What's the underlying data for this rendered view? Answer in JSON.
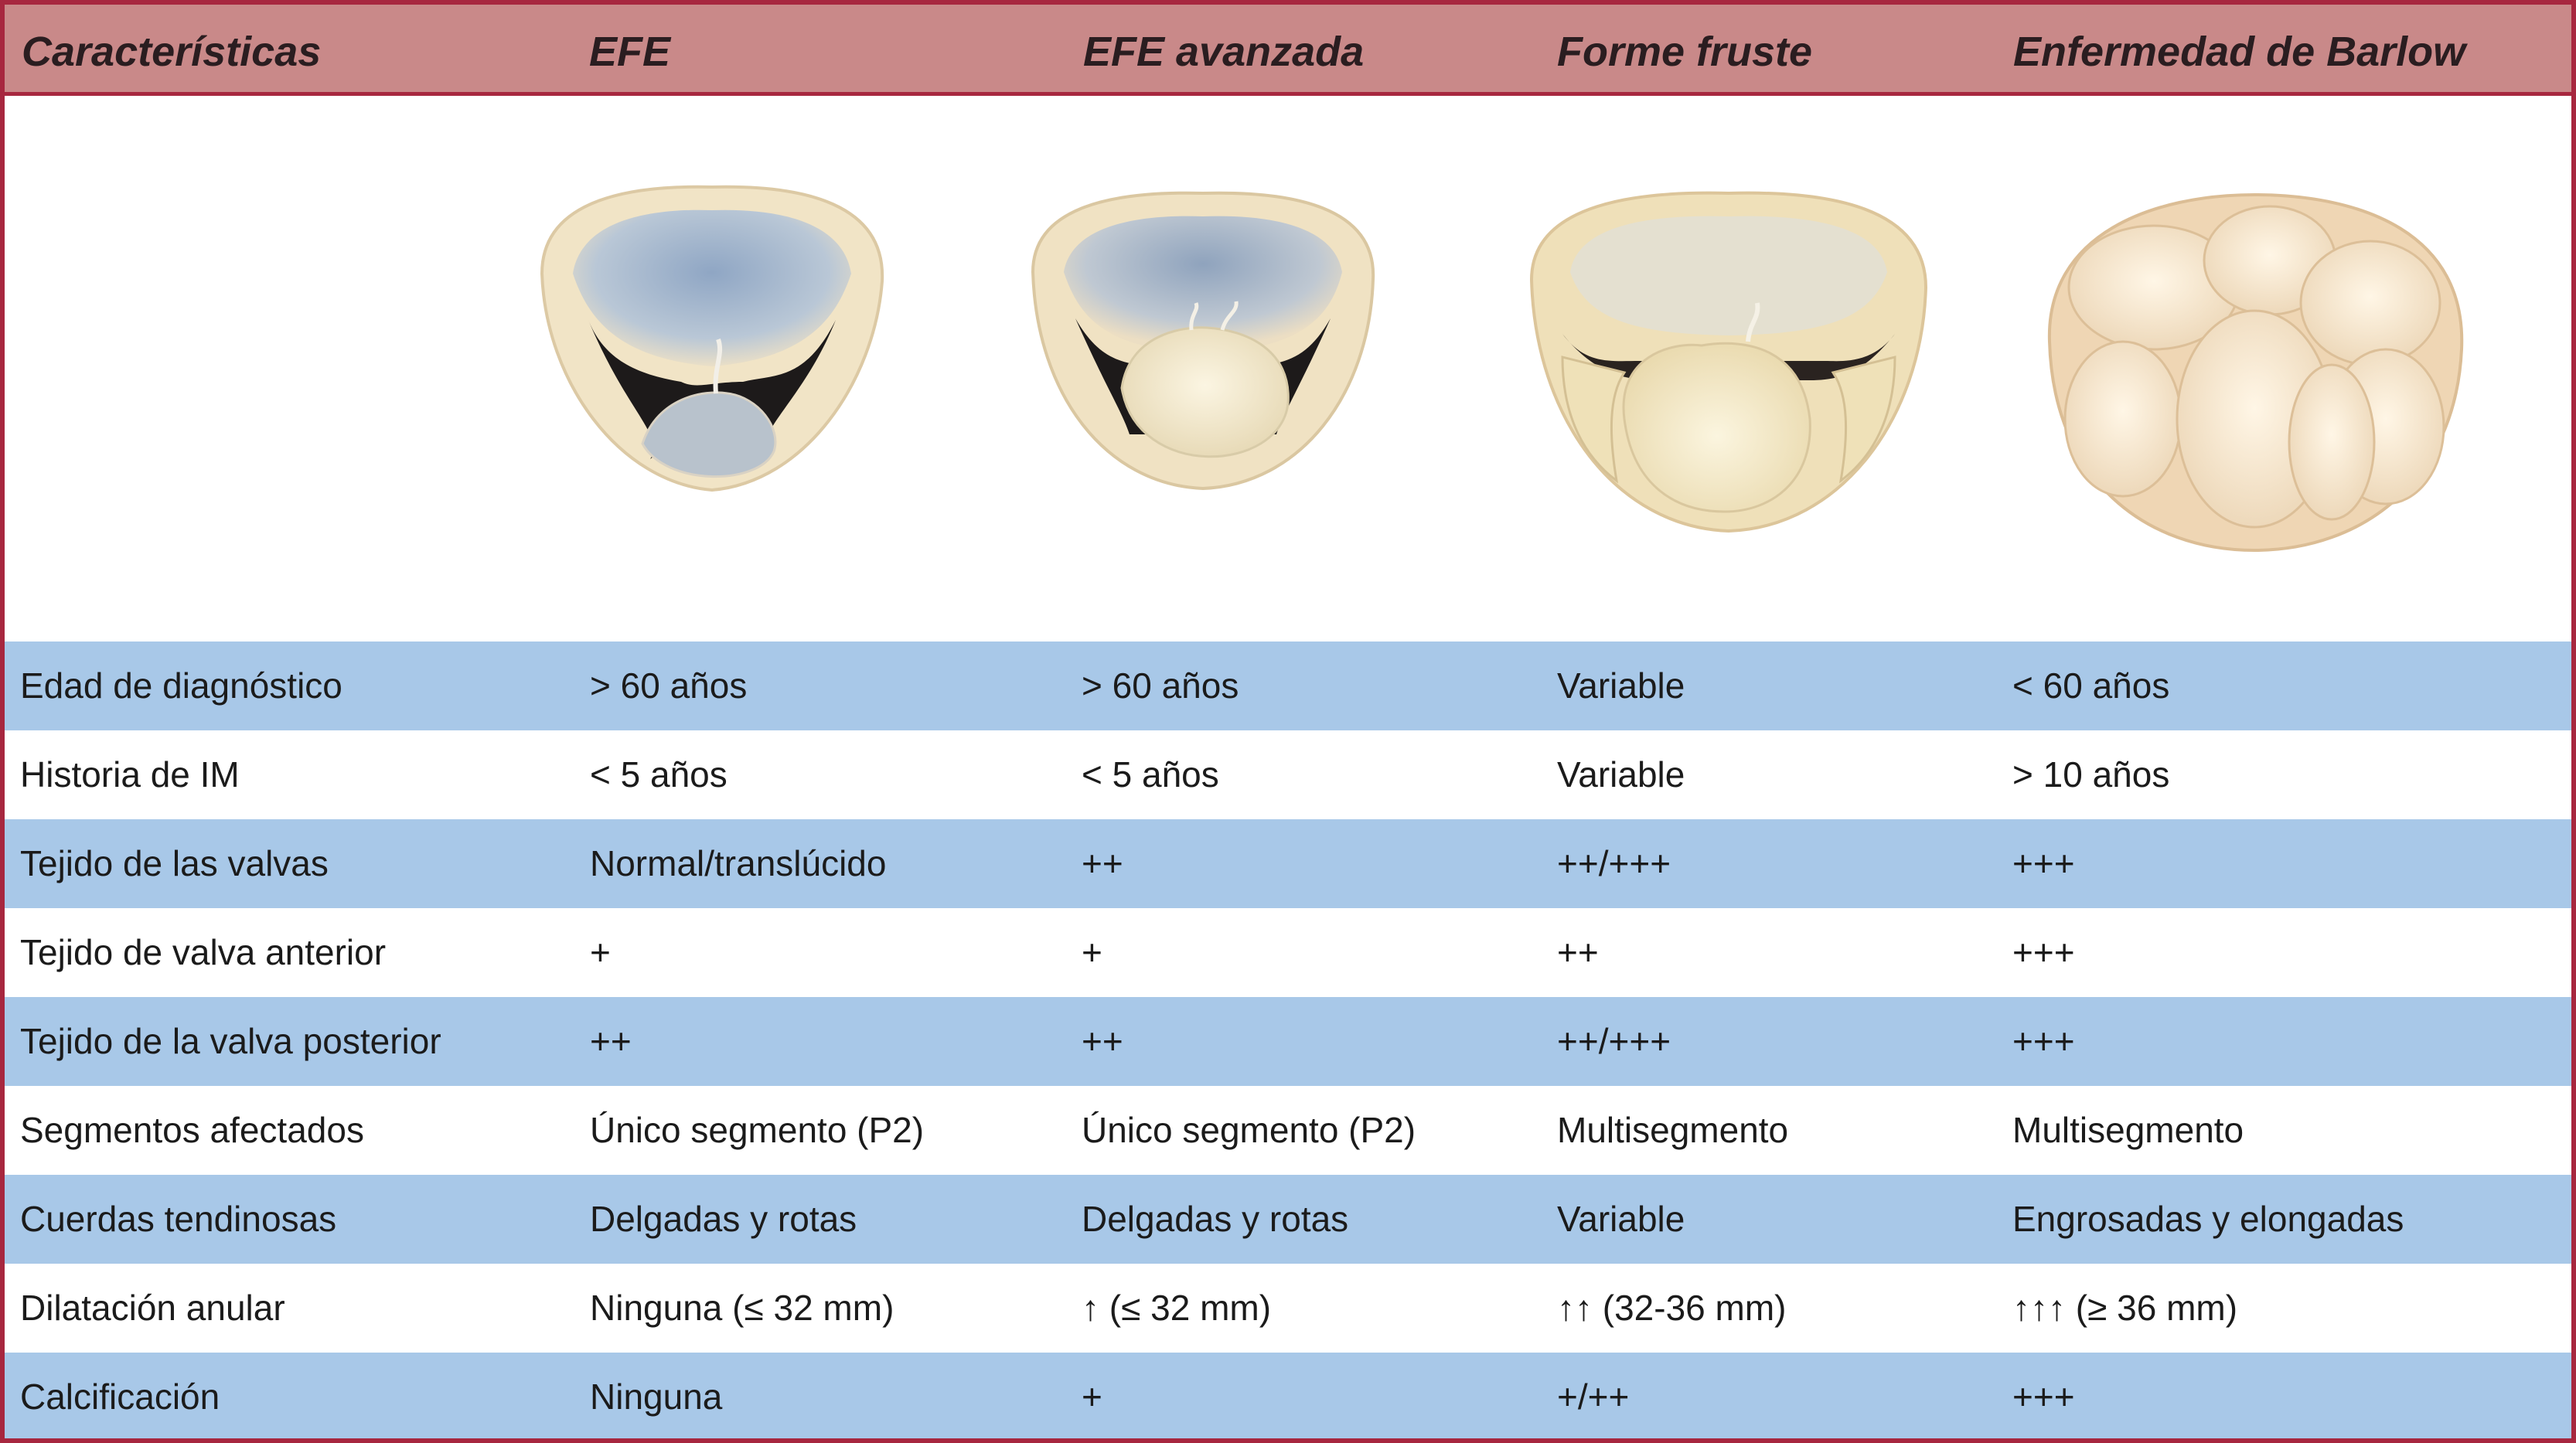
{
  "header": {
    "characteristics": "Características",
    "col1": "EFE",
    "col2": "EFE avanzada",
    "col3": "Forme fruste",
    "col4": "Enfermedad de Barlow"
  },
  "illustrations": [
    {
      "name": "efe-valve-illustration",
      "icon": "mitral-valve-translucent"
    },
    {
      "name": "efe-advanced-valve-illustration",
      "icon": "mitral-valve-thickened-posterior"
    },
    {
      "name": "forme-fruste-valve-illustration",
      "icon": "mitral-valve-multisegment"
    },
    {
      "name": "barlow-valve-illustration",
      "icon": "mitral-valve-billowing"
    }
  ],
  "rows": [
    {
      "label": "Edad de diagnóstico",
      "efe": "> 60 años",
      "efe_avanzada": "> 60 años",
      "forme_fruste": "Variable",
      "barlow": "< 60 años"
    },
    {
      "label": "Historia de IM",
      "efe": "< 5 años",
      "efe_avanzada": "< 5 años",
      "forme_fruste": "Variable",
      "barlow": "> 10 años"
    },
    {
      "label": "Tejido de las valvas",
      "efe": "Normal/translúcido",
      "efe_avanzada": "++",
      "forme_fruste": "++/+++",
      "barlow": "+++"
    },
    {
      "label": "Tejido de valva anterior",
      "efe": "+",
      "efe_avanzada": "+",
      "forme_fruste": "++",
      "barlow": "+++"
    },
    {
      "label": "Tejido de la valva posterior",
      "efe": "++",
      "efe_avanzada": "++",
      "forme_fruste": "++/+++",
      "barlow": "+++"
    },
    {
      "label": "Segmentos afectados",
      "efe": "Único segmento (P2)",
      "efe_avanzada": "Único segmento (P2)",
      "forme_fruste": "Multisegmento",
      "barlow": "Multisegmento"
    },
    {
      "label": "Cuerdas tendinosas",
      "efe": "Delgadas y rotas",
      "efe_avanzada": "Delgadas y rotas",
      "forme_fruste": "Variable",
      "barlow": "Engrosadas y elongadas"
    },
    {
      "label": "Dilatación anular",
      "efe": "Ninguna (≤ 32 mm)",
      "efe_avanzada": "↑ (≤ 32 mm)",
      "forme_fruste": "↑↑ (32-36 mm)",
      "barlow": "↑↑↑ (≥ 36 mm)"
    },
    {
      "label": "Calcificación",
      "efe": "Ninguna",
      "efe_avanzada": "+",
      "forme_fruste": "+/++",
      "barlow": "+++"
    }
  ],
  "colors": {
    "header_bg": "#c98989",
    "border": "#a7273f",
    "row_blue": "#a8c8e8",
    "row_white": "#ffffff"
  }
}
